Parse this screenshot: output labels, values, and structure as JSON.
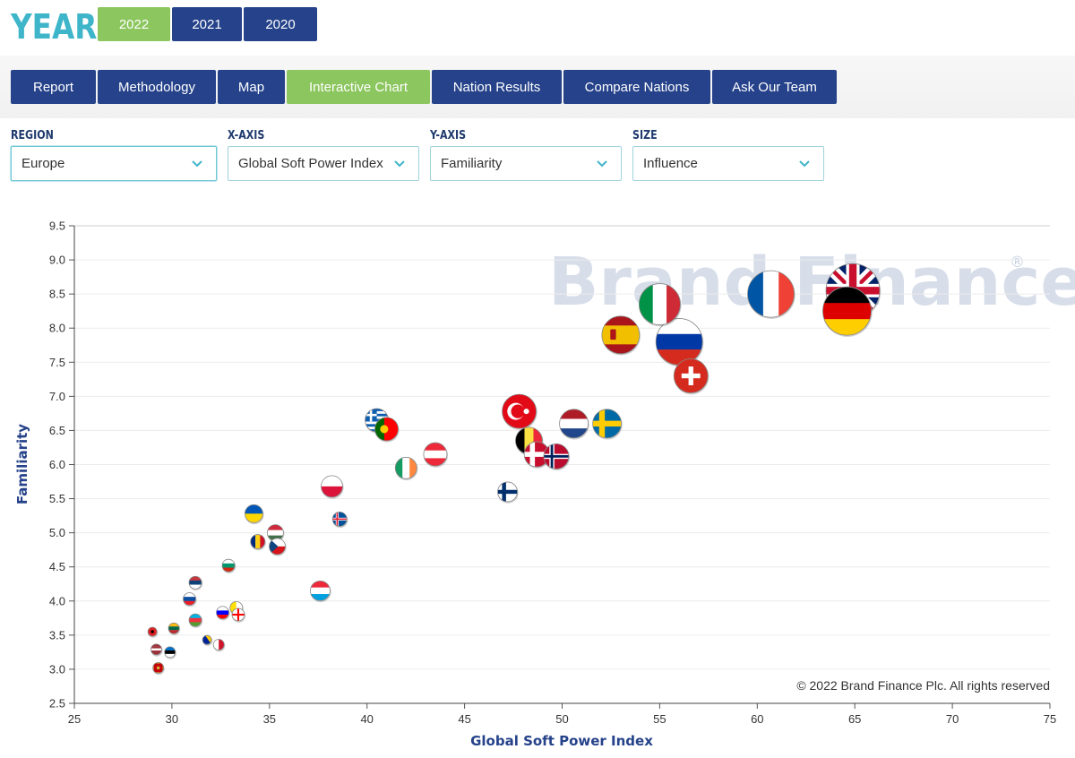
{
  "year_selector": {
    "label": "YEAR",
    "years": [
      {
        "label": "2022",
        "active": true
      },
      {
        "label": "2021",
        "active": false
      },
      {
        "label": "2020",
        "active": false
      }
    ]
  },
  "nav": {
    "tabs": [
      {
        "label": "Report",
        "active": false
      },
      {
        "label": "Methodology",
        "active": false
      },
      {
        "label": "Map",
        "active": false
      },
      {
        "label": "Interactive Chart",
        "active": true
      },
      {
        "label": "Nation Results",
        "active": false
      },
      {
        "label": "Compare Nations",
        "active": false
      },
      {
        "label": "Ask Our Team",
        "active": false
      }
    ]
  },
  "filters": {
    "region": {
      "label": "REGION",
      "value": "Europe"
    },
    "x_axis": {
      "label": "X-AXIS",
      "value": "Global Soft Power Index"
    },
    "y_axis": {
      "label": "Y-AXIS",
      "value": "Familiarity"
    },
    "size": {
      "label": "SIZE",
      "value": "Influence"
    }
  },
  "colors": {
    "navy": "#25428a",
    "green": "#8cc65e",
    "teal": "#3fb5c9"
  },
  "watermark": {
    "text": "Brand Finance",
    "mark": "®"
  },
  "copyright": "© 2022 Brand Finance Plc. All rights reserved",
  "chart_data": {
    "type": "scatter",
    "xlabel": "Global Soft Power Index",
    "ylabel": "Familiarity",
    "xlim": [
      25,
      75
    ],
    "ylim": [
      2.5,
      9.5
    ],
    "xticks": [
      25,
      30,
      35,
      40,
      45,
      50,
      55,
      60,
      65,
      70,
      75
    ],
    "yticks": [
      2.5,
      3.0,
      3.5,
      4.0,
      4.5,
      5.0,
      5.5,
      6.0,
      6.5,
      7.0,
      7.5,
      8.0,
      8.5,
      9.0,
      9.5
    ],
    "grid": true,
    "size_by": "Influence",
    "points": [
      {
        "x": 64.9,
        "y": 8.55,
        "size": 30,
        "flag": "uk"
      },
      {
        "x": 64.6,
        "y": 8.25,
        "size": 27,
        "flag": "germany"
      },
      {
        "x": 60.7,
        "y": 8.5,
        "size": 26,
        "flag": "france"
      },
      {
        "x": 55.0,
        "y": 8.35,
        "size": 23,
        "flag": "italy"
      },
      {
        "x": 56.0,
        "y": 7.8,
        "size": 26,
        "flag": "russia"
      },
      {
        "x": 53.0,
        "y": 7.9,
        "size": 21,
        "flag": "spain"
      },
      {
        "x": 56.6,
        "y": 7.3,
        "size": 19,
        "flag": "switzerland"
      },
      {
        "x": 47.8,
        "y": 6.78,
        "size": 19,
        "flag": "turkey"
      },
      {
        "x": 50.6,
        "y": 6.6,
        "size": 16,
        "flag": "netherlands"
      },
      {
        "x": 52.3,
        "y": 6.6,
        "size": 16,
        "flag": "sweden"
      },
      {
        "x": 48.3,
        "y": 6.35,
        "size": 15,
        "flag": "belgium"
      },
      {
        "x": 48.7,
        "y": 6.15,
        "size": 14,
        "flag": "denmark"
      },
      {
        "x": 49.7,
        "y": 6.12,
        "size": 14,
        "flag": "norway"
      },
      {
        "x": 47.2,
        "y": 5.6,
        "size": 11,
        "flag": "finland"
      },
      {
        "x": 43.5,
        "y": 6.15,
        "size": 13,
        "flag": "austria"
      },
      {
        "x": 40.5,
        "y": 6.65,
        "size": 13,
        "flag": "greece"
      },
      {
        "x": 41.0,
        "y": 6.52,
        "size": 13,
        "flag": "portugal"
      },
      {
        "x": 42.0,
        "y": 5.95,
        "size": 12,
        "flag": "ireland"
      },
      {
        "x": 38.2,
        "y": 5.68,
        "size": 12,
        "flag": "poland"
      },
      {
        "x": 38.6,
        "y": 5.2,
        "size": 8,
        "flag": "iceland"
      },
      {
        "x": 37.6,
        "y": 4.15,
        "size": 11,
        "flag": "luxembourg"
      },
      {
        "x": 34.2,
        "y": 5.28,
        "size": 10,
        "flag": "ukraine"
      },
      {
        "x": 35.3,
        "y": 5.0,
        "size": 9,
        "flag": "hungary"
      },
      {
        "x": 35.4,
        "y": 4.8,
        "size": 9,
        "flag": "czech"
      },
      {
        "x": 34.4,
        "y": 4.87,
        "size": 8,
        "flag": "romania"
      },
      {
        "x": 32.9,
        "y": 4.52,
        "size": 7,
        "flag": "bulgaria"
      },
      {
        "x": 31.2,
        "y": 4.27,
        "size": 7,
        "flag": "serbia"
      },
      {
        "x": 30.9,
        "y": 4.03,
        "size": 7,
        "flag": "slovakia"
      },
      {
        "x": 33.3,
        "y": 3.9,
        "size": 7,
        "flag": "vatican"
      },
      {
        "x": 33.4,
        "y": 3.8,
        "size": 7,
        "flag": "georgia"
      },
      {
        "x": 32.6,
        "y": 3.83,
        "size": 7,
        "flag": "slovenia"
      },
      {
        "x": 31.2,
        "y": 3.72,
        "size": 7,
        "flag": "azerbaijan"
      },
      {
        "x": 30.1,
        "y": 3.6,
        "size": 6,
        "flag": "lithuania"
      },
      {
        "x": 29.0,
        "y": 3.55,
        "size": 5,
        "flag": "albania"
      },
      {
        "x": 31.8,
        "y": 3.43,
        "size": 5,
        "flag": "bosnia"
      },
      {
        "x": 32.4,
        "y": 3.36,
        "size": 6,
        "flag": "malta"
      },
      {
        "x": 29.2,
        "y": 3.29,
        "size": 6,
        "flag": "latvia"
      },
      {
        "x": 29.9,
        "y": 3.25,
        "size": 6,
        "flag": "estonia"
      },
      {
        "x": 29.3,
        "y": 3.02,
        "size": 6,
        "flag": "montenegro"
      }
    ]
  }
}
